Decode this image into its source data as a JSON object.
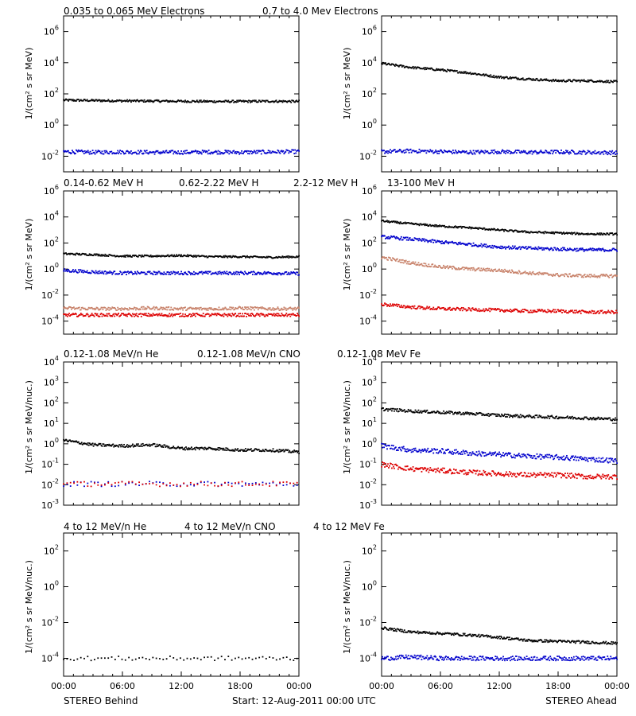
{
  "footer": {
    "left": "STEREO Behind",
    "center": "Start: 12-Aug-2011 00:00 UTC",
    "right": "STEREO Ahead"
  },
  "x_tick_labels": [
    "00:00",
    "06:00",
    "12:00",
    "18:00",
    "00:00"
  ],
  "colors": {
    "black": "#000000",
    "blue": "#0000cc",
    "tan": "#c8826a",
    "red": "#dd0000"
  },
  "rows": [
    {
      "legend": [
        {
          "text": "0.035 to 0.065 MeV Electrons",
          "color": "#000000"
        },
        {
          "text": "0.7 to 4.0 Mev Electrons",
          "color": "#0000cc"
        }
      ],
      "ylabel": "1/(cm² s sr MeV)"
    },
    {
      "legend": [
        {
          "text": "0.14-0.62 MeV H",
          "color": "#000000"
        },
        {
          "text": "0.62-2.22 MeV H",
          "color": "#0000cc"
        },
        {
          "text": "2.2-12 MeV H",
          "color": "#c8826a"
        },
        {
          "text": "13-100 MeV H",
          "color": "#dd0000"
        }
      ],
      "ylabel": "1/(cm² s sr MeV)"
    },
    {
      "legend": [
        {
          "text": "0.12-1.08 MeV/n He",
          "color": "#000000"
        },
        {
          "text": "0.12-1.08 MeV/n CNO",
          "color": "#0000cc"
        },
        {
          "text": "0.12-1.08 MeV Fe",
          "color": "#dd0000"
        }
      ],
      "ylabel": "1/(cm² s sr MeV/nuc.)"
    },
    {
      "legend": [
        {
          "text": "4 to 12 MeV/n He",
          "color": "#000000"
        },
        {
          "text": "4 to 12 MeV/n CNO",
          "color": "#0000cc"
        },
        {
          "text": "4 to 12 MeV Fe",
          "color": "#dd0000"
        }
      ],
      "ylabel": "1/(cm² s sr MeV/nuc.)"
    }
  ],
  "chart_data": [
    {
      "panel": "row1-behind",
      "type": "scatter",
      "ylog": true,
      "ylim": [
        0.001,
        10000000
      ],
      "yticks": [
        "10^-2",
        "10^0",
        "10^2",
        "10^4",
        "10^6"
      ],
      "series": [
        {
          "color": "#000000",
          "x": [
            0,
            3,
            6,
            9,
            12,
            15,
            18,
            21,
            24
          ],
          "y": [
            40,
            38,
            36,
            35,
            34,
            33,
            33,
            34,
            33
          ]
        },
        {
          "color": "#0000cc",
          "x": [
            0,
            3,
            6,
            9,
            12,
            15,
            18,
            21,
            24
          ],
          "y": [
            0.02,
            0.018,
            0.019,
            0.018,
            0.018,
            0.019,
            0.018,
            0.019,
            0.02
          ]
        }
      ]
    },
    {
      "panel": "row1-ahead",
      "type": "scatter",
      "ylog": true,
      "ylim": [
        0.001,
        10000000
      ],
      "yticks": [
        "10^-2",
        "10^0",
        "10^2",
        "10^4",
        "10^6"
      ],
      "series": [
        {
          "color": "#000000",
          "x": [
            0,
            3,
            6,
            9,
            12,
            15,
            18,
            21,
            24
          ],
          "y": [
            9000,
            5000,
            3500,
            2200,
            1200,
            900,
            700,
            700,
            600
          ]
        },
        {
          "color": "#0000cc",
          "x": [
            0,
            3,
            6,
            9,
            12,
            15,
            18,
            21,
            24
          ],
          "y": [
            0.02,
            0.022,
            0.02,
            0.018,
            0.02,
            0.018,
            0.019,
            0.018,
            0.017
          ]
        }
      ]
    },
    {
      "panel": "row2-behind",
      "type": "scatter",
      "ylog": true,
      "ylim": [
        1e-05,
        1000000
      ],
      "yticks": [
        "10^-4",
        "10^-2",
        "10^0",
        "10^2",
        "10^4",
        "10^6"
      ],
      "series": [
        {
          "color": "#000000",
          "x": [
            0,
            3,
            6,
            9,
            12,
            15,
            18,
            21,
            24
          ],
          "y": [
            15,
            13,
            10,
            10,
            11,
            9,
            9,
            8,
            9
          ]
        },
        {
          "color": "#0000cc",
          "x": [
            0,
            3,
            6,
            9,
            12,
            15,
            18,
            21,
            24
          ],
          "y": [
            0.8,
            0.6,
            0.5,
            0.5,
            0.5,
            0.5,
            0.5,
            0.5,
            0.45
          ]
        },
        {
          "color": "#c8826a",
          "x": [
            0,
            3,
            6,
            9,
            12,
            15,
            18,
            21,
            24
          ],
          "y": [
            0.001,
            0.0009,
            0.0009,
            0.001,
            0.0009,
            0.0009,
            0.001,
            0.0009,
            0.0009
          ]
        },
        {
          "color": "#dd0000",
          "x": [
            0,
            3,
            6,
            9,
            12,
            15,
            18,
            21,
            24
          ],
          "y": [
            0.0003,
            0.0003,
            0.0003,
            0.0003,
            0.0003,
            0.0003,
            0.0003,
            0.0003,
            0.0003
          ]
        }
      ]
    },
    {
      "panel": "row2-ahead",
      "type": "scatter",
      "ylog": true,
      "ylim": [
        1e-05,
        1000000
      ],
      "yticks": [
        "10^-4",
        "10^-2",
        "10^0",
        "10^2",
        "10^4",
        "10^6"
      ],
      "series": [
        {
          "color": "#000000",
          "x": [
            0,
            3,
            6,
            9,
            12,
            15,
            18,
            21,
            24
          ],
          "y": [
            5000,
            3000,
            2000,
            1500,
            1000,
            700,
            600,
            500,
            500
          ]
        },
        {
          "color": "#0000cc",
          "x": [
            0,
            3,
            6,
            9,
            12,
            15,
            18,
            21,
            24
          ],
          "y": [
            300,
            200,
            120,
            80,
            50,
            40,
            35,
            30,
            30
          ]
        },
        {
          "color": "#c8826a",
          "x": [
            0,
            3,
            6,
            9,
            12,
            15,
            18,
            21,
            24
          ],
          "y": [
            8,
            3,
            1.5,
            1,
            0.8,
            0.5,
            0.35,
            0.3,
            0.3
          ]
        },
        {
          "color": "#dd0000",
          "x": [
            0,
            3,
            6,
            9,
            12,
            15,
            18,
            21,
            24
          ],
          "y": [
            0.002,
            0.0012,
            0.0009,
            0.0008,
            0.0007,
            0.0006,
            0.0006,
            0.0005,
            0.0005
          ]
        }
      ]
    },
    {
      "panel": "row3-behind",
      "type": "scatter",
      "ylog": true,
      "ylim": [
        0.001,
        10000
      ],
      "yticks": [
        "10^-3",
        "10^-2",
        "10^-1",
        "10^0",
        "10^1",
        "10^2",
        "10^3",
        "10^4"
      ],
      "series": [
        {
          "color": "#000000",
          "x": [
            0,
            3,
            6,
            9,
            12,
            15,
            18,
            21,
            24
          ],
          "y": [
            1.5,
            0.9,
            0.8,
            0.9,
            0.6,
            0.6,
            0.5,
            0.5,
            0.4
          ]
        },
        {
          "color": "#0000cc",
          "x": [
            0,
            3,
            6,
            9,
            12,
            15,
            18,
            21,
            24
          ],
          "y": [
            0.011,
            0.011,
            0.011,
            0.011,
            0.011,
            0.011,
            0.011,
            0.011,
            0.011
          ]
        },
        {
          "color": "#dd0000",
          "x": [
            0,
            2,
            4,
            6,
            20,
            22,
            24
          ],
          "y": [
            0.011,
            0.011,
            0.011,
            0.011,
            0.011,
            0.011,
            0.011
          ]
        }
      ]
    },
    {
      "panel": "row3-ahead",
      "type": "scatter",
      "ylog": true,
      "ylim": [
        0.001,
        10000
      ],
      "yticks": [
        "10^-3",
        "10^-2",
        "10^-1",
        "10^0",
        "10^1",
        "10^2",
        "10^3",
        "10^4"
      ],
      "series": [
        {
          "color": "#000000",
          "x": [
            0,
            3,
            6,
            9,
            12,
            15,
            18,
            21,
            24
          ],
          "y": [
            50,
            40,
            35,
            30,
            25,
            22,
            20,
            18,
            16
          ]
        },
        {
          "color": "#0000cc",
          "x": [
            0,
            3,
            6,
            9,
            12,
            15,
            18,
            21,
            24
          ],
          "y": [
            0.8,
            0.5,
            0.45,
            0.35,
            0.3,
            0.25,
            0.22,
            0.18,
            0.15
          ]
        },
        {
          "color": "#dd0000",
          "x": [
            0,
            3,
            6,
            9,
            12,
            15,
            18,
            21,
            24
          ],
          "y": [
            0.1,
            0.06,
            0.05,
            0.04,
            0.035,
            0.03,
            0.03,
            0.025,
            0.025
          ]
        }
      ]
    },
    {
      "panel": "row4-behind",
      "type": "scatter",
      "ylog": true,
      "ylim": [
        1e-05,
        1000
      ],
      "yticks": [
        "10^-4",
        "10^-2",
        "10^0",
        "10^2"
      ],
      "series": [
        {
          "color": "#000000",
          "x": [
            0,
            2,
            4,
            6,
            8,
            10,
            12,
            14,
            16,
            18,
            20,
            22,
            24
          ],
          "y": [
            0.0001,
            0.0001,
            0.0001,
            0.0001,
            0.0001,
            0.0001,
            0.0001,
            0.0001,
            0.0001,
            0.0001,
            0.0001,
            0.0001,
            0.0001
          ]
        }
      ]
    },
    {
      "panel": "row4-ahead",
      "type": "scatter",
      "ylog": true,
      "ylim": [
        1e-05,
        1000
      ],
      "yticks": [
        "10^-4",
        "10^-2",
        "10^0",
        "10^2"
      ],
      "series": [
        {
          "color": "#000000",
          "x": [
            0,
            3,
            6,
            9,
            12,
            15,
            18,
            21,
            24
          ],
          "y": [
            0.005,
            0.003,
            0.0025,
            0.002,
            0.0015,
            0.001,
            0.0009,
            0.0008,
            0.0007
          ]
        },
        {
          "color": "#0000cc",
          "x": [
            0,
            3,
            6,
            9,
            12,
            15,
            18,
            21,
            24
          ],
          "y": [
            0.0001,
            0.00012,
            0.0001,
            0.0001,
            0.0001,
            0.0001,
            0.0001,
            0.0001,
            0.0001
          ]
        }
      ]
    }
  ]
}
